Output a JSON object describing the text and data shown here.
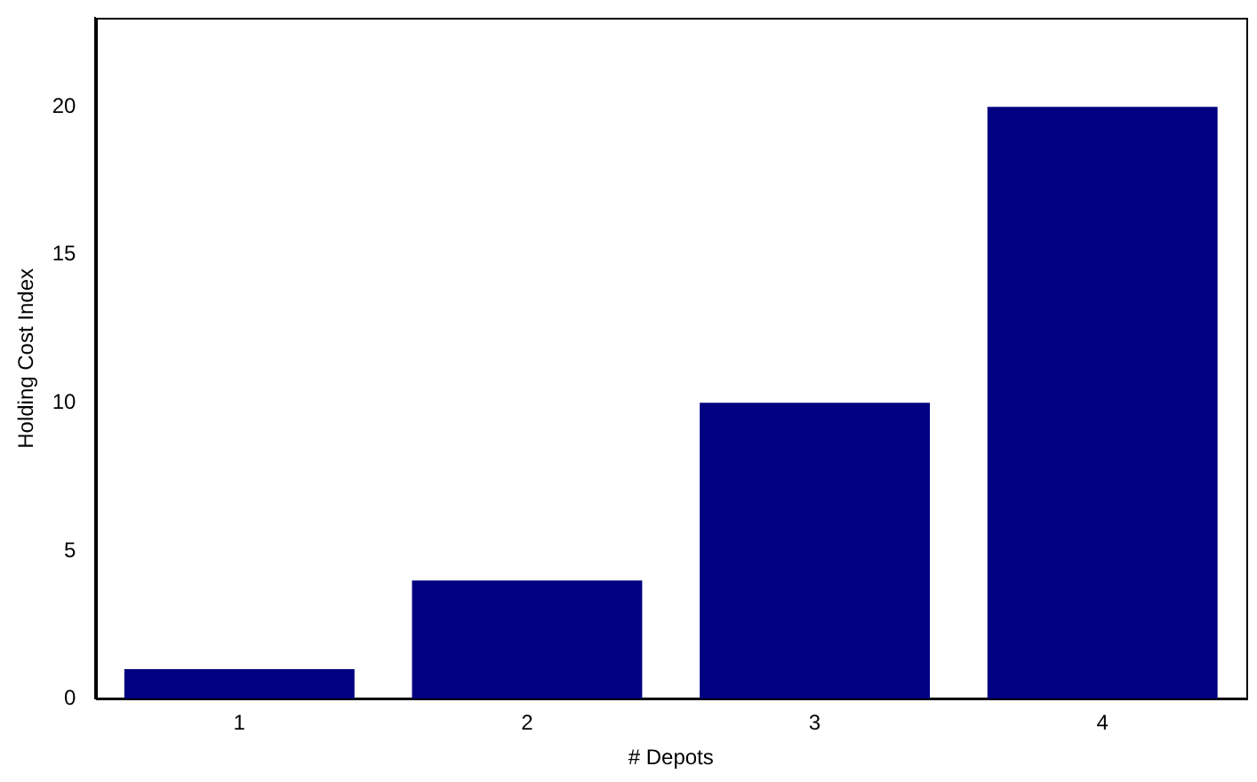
{
  "chart_data": {
    "type": "bar",
    "xlabel": "# Depots",
    "ylabel": "Holding Cost Index",
    "categories": [
      "1",
      "2",
      "3",
      "4"
    ],
    "values": [
      1,
      4,
      10,
      20
    ],
    "color": "#000080",
    "ylim": [
      0,
      23
    ],
    "yticks": [
      0,
      5,
      10,
      15,
      20
    ],
    "grid": false,
    "legend": false
  }
}
